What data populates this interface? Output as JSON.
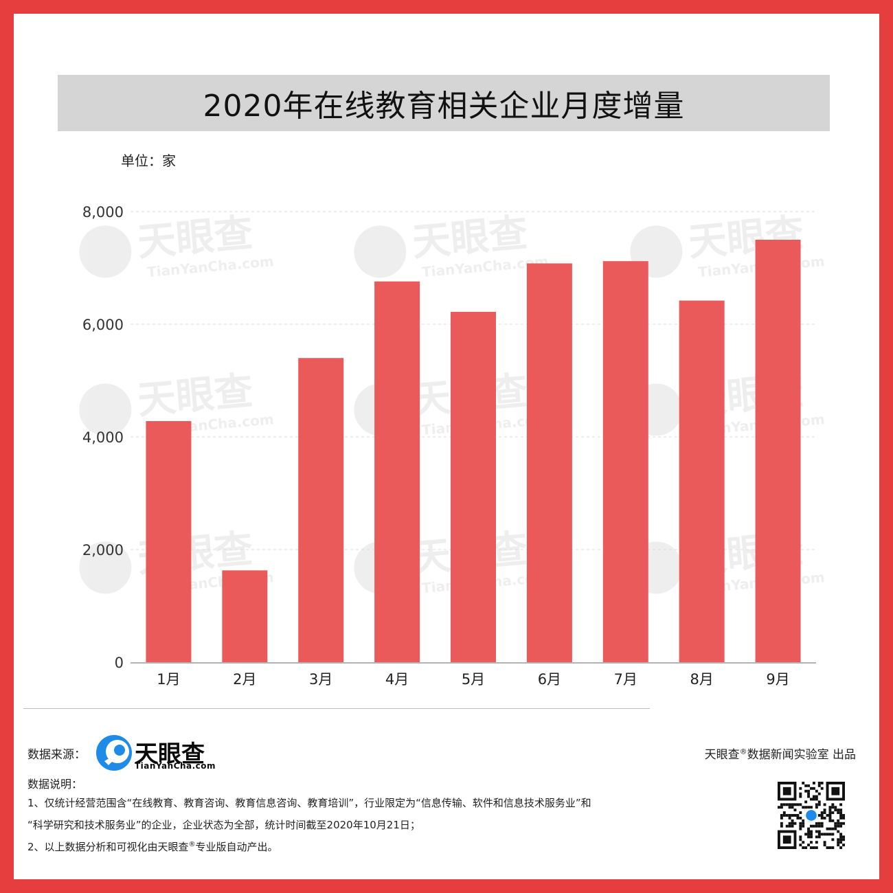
{
  "title": "2020年在线教育相关企业月度增量",
  "unit_label": "单位：家",
  "colors": {
    "frame": "#e63d3f",
    "bar": "#ea5a5b",
    "title_bg": "#d5d5d5"
  },
  "chart_data": {
    "type": "bar",
    "categories": [
      "1月",
      "2月",
      "3月",
      "4月",
      "5月",
      "6月",
      "7月",
      "8月",
      "9月"
    ],
    "values": [
      4280,
      1630,
      5400,
      6760,
      6220,
      7080,
      7120,
      6420,
      7500
    ],
    "ylim": [
      0,
      8000
    ],
    "yticks": [
      "0",
      "2,000",
      "4,000",
      "6,000",
      "8,000"
    ],
    "ytick_values": [
      0,
      2000,
      4000,
      6000,
      8000
    ],
    "grid": true,
    "watermark": [
      "天眼查",
      "TianYanCha.com"
    ]
  },
  "footer": {
    "source_label": "数据来源：",
    "logo_name": "天眼查",
    "logo_url": "TianYanCha.com",
    "credit_pre": "天眼查",
    "credit_mark": "®",
    "credit_post": "数据新闻实验室 出品",
    "notes_title": "数据说明：",
    "note1_line1": "1、仅统计经营范围含“在线教育、教育咨询、教育信息咨询、教育培训”，行业限定为“信息传输、软件和信息技术服务业”和",
    "note1_line2": "“科学研究和技术服务业”的企业，企业状态为全部，统计时间截至2020年10月21日；",
    "note2_pre": "2、以上数据分析和可视化由天眼查",
    "note2_mark": "®",
    "note2_post": "专业版自动产出。",
    "qr_icon": "qr-code-icon"
  }
}
